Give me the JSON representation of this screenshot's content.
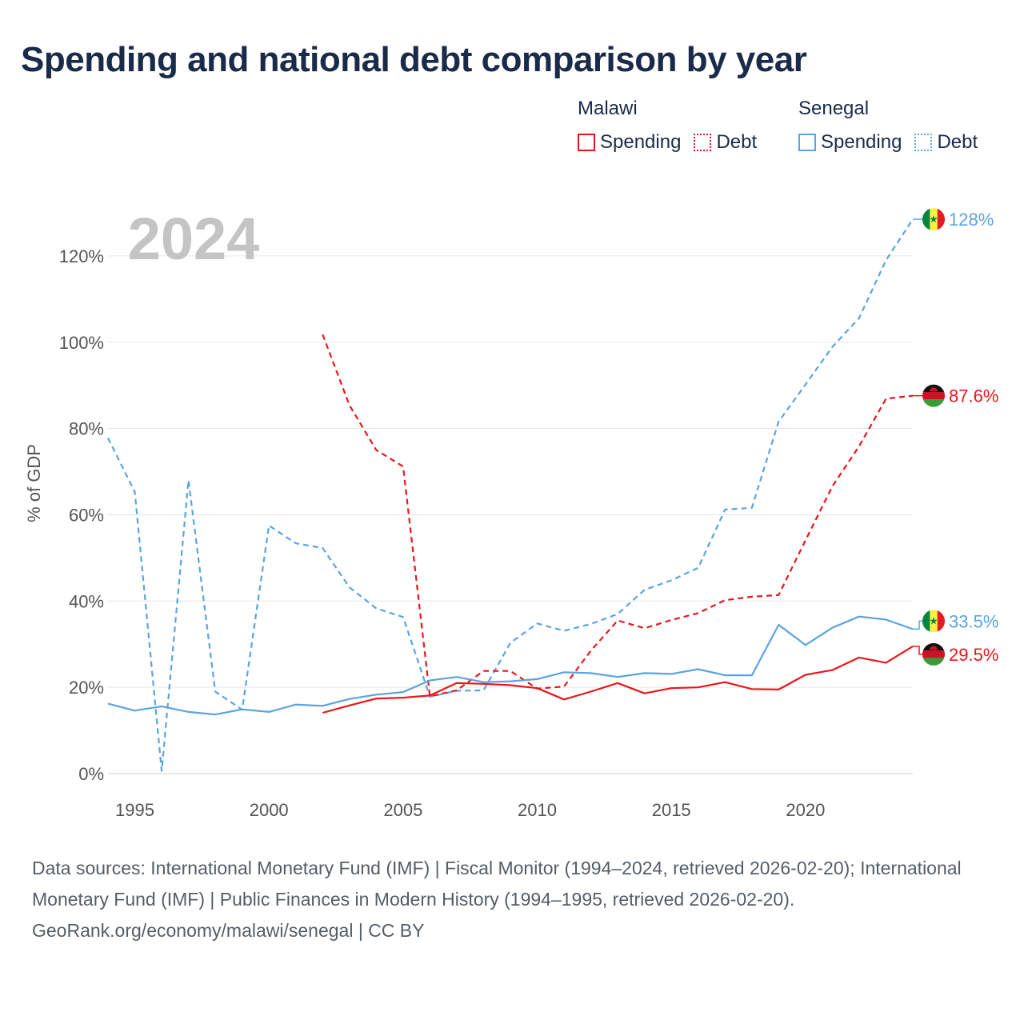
{
  "title": "Spending and national debt comparison by year",
  "legend": {
    "malawi": {
      "country": "Malawi",
      "spending": "Spending",
      "debt": "Debt",
      "color": "#e8161b"
    },
    "senegal": {
      "country": "Senegal",
      "spending": "Spending",
      "debt": "Debt",
      "color": "#5ba3e0"
    }
  },
  "year_label": "2024",
  "footer": {
    "sources": "Data sources: International Monetary Fund (IMF) | Fiscal Monitor (1994–2024, retrieved 2026-02-20); International Monetary Fund (IMF) | Public Finances in Modern History (1994–1995, retrieved 2026-02-20).",
    "credit": "GeoRank.org/economy/malawi/senegal | CC BY"
  },
  "chart_data": {
    "type": "line",
    "title": "Spending and national debt comparison by year",
    "ylabel": "% of GDP",
    "xlabel": "",
    "xlim": [
      1994,
      2024
    ],
    "ylim": [
      0,
      130
    ],
    "x_ticks": [
      1995,
      2000,
      2005,
      2010,
      2015,
      2020
    ],
    "y_ticks": [
      {
        "value": 0,
        "label": "0%"
      },
      {
        "value": 20,
        "label": "20%"
      },
      {
        "value": 40,
        "label": "40%"
      },
      {
        "value": 60,
        "label": "60%"
      },
      {
        "value": 80,
        "label": "80%"
      },
      {
        "value": 100,
        "label": "100%"
      },
      {
        "value": 120,
        "label": "120%"
      }
    ],
    "grid": true,
    "series": [
      {
        "name": "Senegal Debt",
        "country": "Senegal",
        "style": "dashed",
        "color": "#5ba3e0",
        "end_label": "128%",
        "flag": "senegal",
        "x": [
          1994,
          1995,
          1996,
          1997,
          1998,
          1999,
          2000,
          2001,
          2002,
          2003,
          2004,
          2005,
          2006,
          2007,
          2008,
          2009,
          2010,
          2011,
          2012,
          2013,
          2014,
          2015,
          2016,
          2017,
          2018,
          2019,
          2020,
          2021,
          2022,
          2023,
          2024
        ],
        "values": [
          77.8,
          65.3,
          0.6,
          68.0,
          19.0,
          14.8,
          57.5,
          53.4,
          52.3,
          43.2,
          38.3,
          36.3,
          17.8,
          19.2,
          19.3,
          30.3,
          34.8,
          33.1,
          34.7,
          37.0,
          42.6,
          44.8,
          47.7,
          61.2,
          61.6,
          81.6,
          90.2,
          98.9,
          105.6,
          119.0,
          128.5
        ]
      },
      {
        "name": "Malawi Debt",
        "country": "Malawi",
        "style": "dashed",
        "color": "#e8161b",
        "end_label": "87.6%",
        "flag": "malawi",
        "x": [
          2002,
          2003,
          2004,
          2005,
          2006,
          2007,
          2008,
          2009,
          2010,
          2011,
          2012,
          2013,
          2014,
          2015,
          2016,
          2017,
          2018,
          2019,
          2020,
          2021,
          2022,
          2023,
          2024
        ],
        "values": [
          101.8,
          85.4,
          75.0,
          71.2,
          17.9,
          19.3,
          23.8,
          23.8,
          19.7,
          20.2,
          28.5,
          35.5,
          33.7,
          35.6,
          37.2,
          40.2,
          41.0,
          41.4,
          54.1,
          66.6,
          75.9,
          86.9,
          87.6
        ]
      },
      {
        "name": "Senegal Spending",
        "country": "Senegal",
        "style": "solid",
        "color": "#5ba3e0",
        "end_label": "33.5%",
        "flag": "senegal",
        "x": [
          1994,
          1995,
          1996,
          1997,
          1998,
          1999,
          2000,
          2001,
          2002,
          2003,
          2004,
          2005,
          2006,
          2007,
          2008,
          2009,
          2010,
          2011,
          2012,
          2013,
          2014,
          2015,
          2016,
          2017,
          2018,
          2019,
          2020,
          2021,
          2022,
          2023,
          2024
        ],
        "values": [
          16.2,
          14.6,
          15.6,
          14.3,
          13.7,
          14.9,
          14.3,
          16.0,
          15.7,
          17.3,
          18.3,
          18.9,
          21.6,
          22.4,
          21.2,
          21.4,
          21.9,
          23.5,
          23.3,
          22.4,
          23.3,
          23.1,
          24.2,
          22.8,
          22.8,
          34.5,
          29.8,
          33.8,
          36.4,
          35.7,
          33.5
        ]
      },
      {
        "name": "Malawi Spending",
        "country": "Malawi",
        "style": "solid",
        "color": "#e8161b",
        "end_label": "29.5%",
        "flag": "malawi",
        "x": [
          2002,
          2003,
          2004,
          2005,
          2006,
          2007,
          2008,
          2009,
          2010,
          2011,
          2012,
          2013,
          2014,
          2015,
          2016,
          2017,
          2018,
          2019,
          2020,
          2021,
          2022,
          2023,
          2024
        ],
        "values": [
          14.1,
          15.8,
          17.4,
          17.6,
          18.1,
          21.0,
          20.8,
          20.5,
          19.8,
          17.2,
          19.0,
          21.0,
          18.6,
          19.8,
          20.0,
          21.2,
          19.6,
          19.5,
          22.9,
          24.0,
          26.9,
          25.7,
          29.5
        ]
      }
    ]
  }
}
